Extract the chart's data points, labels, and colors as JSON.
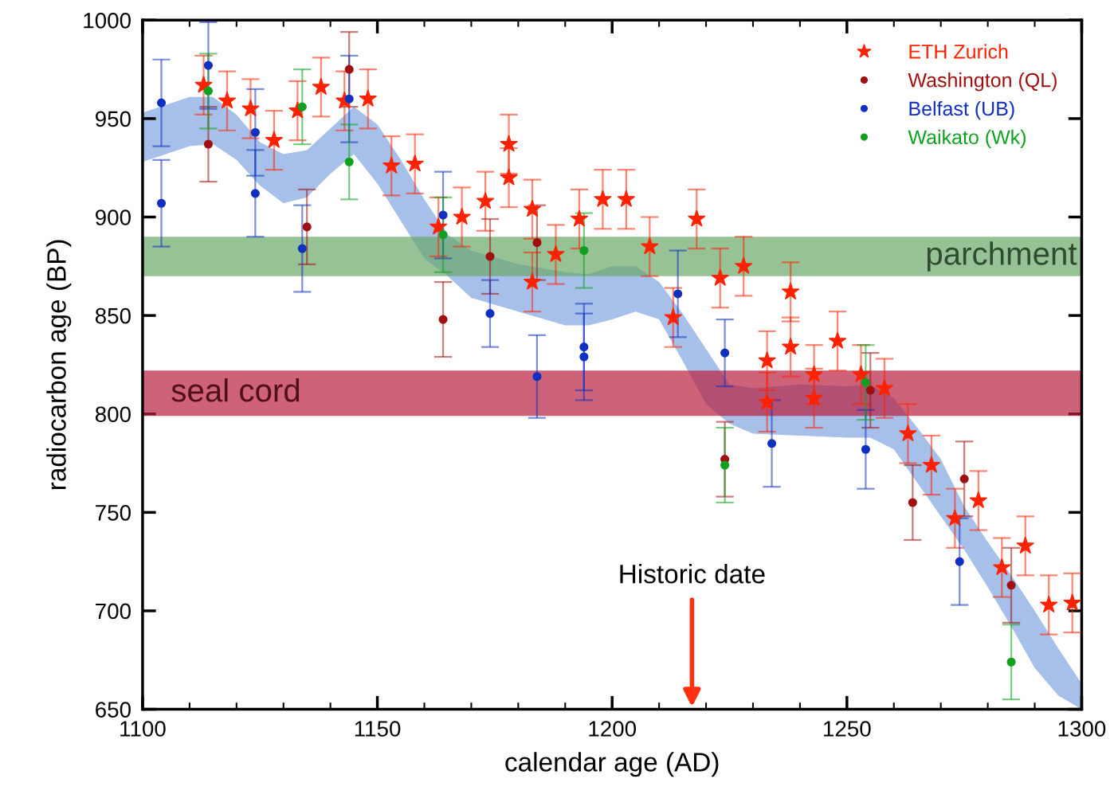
{
  "chart_data": {
    "type": "scatter",
    "xlabel": "calendar age (AD)",
    "ylabel": "radiocarbon age (BP)",
    "xlim": [
      1100,
      1300
    ],
    "xticks": [
      1100,
      1150,
      1200,
      1250,
      1300
    ],
    "ylim": [
      650,
      1000
    ],
    "yticks": [
      650,
      700,
      750,
      800,
      850,
      900,
      950,
      1000
    ],
    "grid": false,
    "legend": "top right",
    "series": [
      {
        "type": "line",
        "color": "#a6c0ea",
        "x": [
          1100,
          1110,
          1115,
          1120,
          1125,
          1130,
          1135,
          1140,
          1145,
          1150,
          1155,
          1160,
          1165,
          1170,
          1180,
          1190,
          1195,
          1200,
          1205,
          1210,
          1215,
          1220,
          1225,
          1230,
          1240,
          1250,
          1255,
          1260,
          1265,
          1270,
          1275,
          1280,
          1285,
          1290,
          1295,
          1300
        ],
        "lower": [
          928,
          936,
          937,
          929,
          916,
          907,
          910,
          922,
          932,
          917,
          898,
          879,
          870,
          859,
          852,
          845,
          845,
          848,
          852,
          848,
          827,
          805,
          795,
          790,
          789,
          788,
          788,
          782,
          765,
          748,
          731,
          712,
          692,
          671,
          657,
          650
        ],
        "upper": [
          953,
          961,
          961,
          952,
          938,
          932,
          934,
          945,
          956,
          947,
          929,
          909,
          891,
          883,
          876,
          872,
          871,
          875,
          875,
          867,
          851,
          833,
          815,
          813,
          815,
          814,
          815,
          808,
          793,
          777,
          753,
          735,
          718,
          700,
          681,
          663
        ],
        "values": [
          null,
          null,
          null,
          null,
          null,
          null,
          null,
          null,
          null,
          null,
          null,
          null,
          null,
          null,
          null,
          null,
          null,
          null,
          null,
          null,
          null,
          null,
          null,
          null,
          null,
          null,
          null,
          null,
          null,
          null,
          null,
          null,
          null,
          null,
          null,
          null
        ]
      },
      {
        "name": "ETH Zurich",
        "color": "#ff2200",
        "marker": "star",
        "x": [
          1113,
          1118,
          1123,
          1128,
          1133,
          1138,
          1143,
          1148,
          1153,
          1158,
          1163,
          1168,
          1173,
          1178,
          1178,
          1183,
          1183,
          1188,
          1193,
          1198,
          1203,
          1208,
          1213,
          1218,
          1223,
          1228,
          1233,
          1233,
          1238,
          1238,
          1243,
          1243,
          1248,
          1253,
          1258,
          1263,
          1268,
          1273,
          1278,
          1283,
          1288,
          1293,
          1298
        ],
        "values": [
          967,
          959,
          955,
          939,
          954,
          966,
          959,
          960,
          926,
          927,
          895,
          900,
          908,
          937,
          920,
          904,
          867,
          881,
          899,
          909,
          909,
          885,
          849,
          899,
          869,
          875,
          827,
          806,
          862,
          834,
          820,
          808,
          837,
          820,
          813,
          790,
          774,
          747,
          756,
          722,
          733,
          703,
          704
        ],
        "errors": [
          15,
          15,
          15,
          15,
          15,
          15,
          15,
          15,
          15,
          15,
          15,
          15,
          15,
          15,
          15,
          15,
          15,
          15,
          15,
          15,
          15,
          15,
          15,
          15,
          15,
          15,
          15,
          15,
          15,
          15,
          15,
          15,
          15,
          15,
          15,
          15,
          15,
          15,
          15,
          15,
          15,
          15,
          15
        ]
      },
      {
        "name": "Washington (QL)",
        "color": "#a01010",
        "marker": "circle",
        "x": [
          1114,
          1135,
          1144,
          1164,
          1174,
          1184,
          1224,
          1255,
          1264,
          1275,
          1285
        ],
        "values": [
          937,
          895,
          975,
          848,
          880,
          887,
          777,
          812,
          755,
          767,
          713
        ],
        "errors": [
          19,
          19,
          19,
          19,
          19,
          19,
          19,
          19,
          19,
          19,
          19
        ]
      },
      {
        "name": "Belfast (UB)",
        "color": "#1030c0",
        "marker": "circle",
        "x": [
          1104,
          1104,
          1114,
          1124,
          1124,
          1134,
          1144,
          1164,
          1174,
          1184,
          1194,
          1194,
          1214,
          1224,
          1234,
          1254,
          1274
        ],
        "values": [
          958,
          907,
          977,
          943,
          912,
          884,
          960,
          901,
          851,
          819,
          834,
          829,
          861,
          831,
          785,
          782,
          725
        ],
        "errors": [
          22,
          22,
          22,
          22,
          22,
          22,
          22,
          22,
          17,
          21,
          22,
          22,
          22,
          17,
          22,
          20,
          22
        ]
      },
      {
        "name": "Waikato (Wk)",
        "color": "#10a020",
        "marker": "circle",
        "x": [
          1114,
          1134,
          1144,
          1164,
          1194,
          1224,
          1254,
          1285
        ],
        "values": [
          964,
          956,
          928,
          891,
          883,
          774,
          816,
          674
        ],
        "errors": [
          19,
          19,
          19,
          19,
          19,
          19,
          19,
          19
        ]
      }
    ],
    "bands": [
      {
        "axis": "y",
        "from": 870,
        "to": 890,
        "label": "parchment",
        "color": "#6aa86a"
      },
      {
        "axis": "y",
        "from": 799,
        "to": 822,
        "label": "seal cord",
        "color": "#b8203e"
      }
    ],
    "annotations": [
      "Historic date"
    ]
  }
}
